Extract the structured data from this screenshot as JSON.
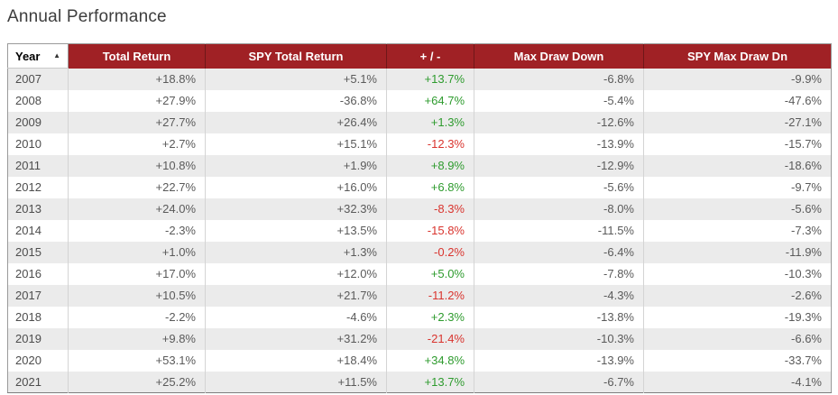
{
  "page": {
    "title": "Annual Performance"
  },
  "icons": {
    "sort_ascending": "▲"
  },
  "colors": {
    "header_bg": "#a02125",
    "header_text": "#ffffff",
    "positive": "#2e9b2e",
    "negative": "#d9342e",
    "row_alt_bg": "#ebebeb"
  },
  "table": {
    "columns": [
      {
        "key": "year",
        "label": "Year",
        "sorted": "ascending"
      },
      {
        "key": "total_return",
        "label": "Total Return"
      },
      {
        "key": "spy_total_return",
        "label": "SPY Total Return"
      },
      {
        "key": "plus_minus",
        "label": "+ / -"
      },
      {
        "key": "max_draw_down",
        "label": "Max Draw Down"
      },
      {
        "key": "spy_max_draw_dn",
        "label": "SPY Max Draw Dn"
      }
    ],
    "rows": [
      {
        "year": "2007",
        "total_return": "+18.8%",
        "spy_total_return": "+5.1%",
        "plus_minus": "+13.7%",
        "max_draw_down": "-6.8%",
        "spy_max_draw_dn": "-9.9%"
      },
      {
        "year": "2008",
        "total_return": "+27.9%",
        "spy_total_return": "-36.8%",
        "plus_minus": "+64.7%",
        "max_draw_down": "-5.4%",
        "spy_max_draw_dn": "-47.6%"
      },
      {
        "year": "2009",
        "total_return": "+27.7%",
        "spy_total_return": "+26.4%",
        "plus_minus": "+1.3%",
        "max_draw_down": "-12.6%",
        "spy_max_draw_dn": "-27.1%"
      },
      {
        "year": "2010",
        "total_return": "+2.7%",
        "spy_total_return": "+15.1%",
        "plus_minus": "-12.3%",
        "max_draw_down": "-13.9%",
        "spy_max_draw_dn": "-15.7%"
      },
      {
        "year": "2011",
        "total_return": "+10.8%",
        "spy_total_return": "+1.9%",
        "plus_minus": "+8.9%",
        "max_draw_down": "-12.9%",
        "spy_max_draw_dn": "-18.6%"
      },
      {
        "year": "2012",
        "total_return": "+22.7%",
        "spy_total_return": "+16.0%",
        "plus_minus": "+6.8%",
        "max_draw_down": "-5.6%",
        "spy_max_draw_dn": "-9.7%"
      },
      {
        "year": "2013",
        "total_return": "+24.0%",
        "spy_total_return": "+32.3%",
        "plus_minus": "-8.3%",
        "max_draw_down": "-8.0%",
        "spy_max_draw_dn": "-5.6%"
      },
      {
        "year": "2014",
        "total_return": "-2.3%",
        "spy_total_return": "+13.5%",
        "plus_minus": "-15.8%",
        "max_draw_down": "-11.5%",
        "spy_max_draw_dn": "-7.3%"
      },
      {
        "year": "2015",
        "total_return": "+1.0%",
        "spy_total_return": "+1.3%",
        "plus_minus": "-0.2%",
        "max_draw_down": "-6.4%",
        "spy_max_draw_dn": "-11.9%"
      },
      {
        "year": "2016",
        "total_return": "+17.0%",
        "spy_total_return": "+12.0%",
        "plus_minus": "+5.0%",
        "max_draw_down": "-7.8%",
        "spy_max_draw_dn": "-10.3%"
      },
      {
        "year": "2017",
        "total_return": "+10.5%",
        "spy_total_return": "+21.7%",
        "plus_minus": "-11.2%",
        "max_draw_down": "-4.3%",
        "spy_max_draw_dn": "-2.6%"
      },
      {
        "year": "2018",
        "total_return": "-2.2%",
        "spy_total_return": "-4.6%",
        "plus_minus": "+2.3%",
        "max_draw_down": "-13.8%",
        "spy_max_draw_dn": "-19.3%"
      },
      {
        "year": "2019",
        "total_return": "+9.8%",
        "spy_total_return": "+31.2%",
        "plus_minus": "-21.4%",
        "max_draw_down": "-10.3%",
        "spy_max_draw_dn": "-6.6%"
      },
      {
        "year": "2020",
        "total_return": "+53.1%",
        "spy_total_return": "+18.4%",
        "plus_minus": "+34.8%",
        "max_draw_down": "-13.9%",
        "spy_max_draw_dn": "-33.7%"
      },
      {
        "year": "2021",
        "total_return": "+25.2%",
        "spy_total_return": "+11.5%",
        "plus_minus": "+13.7%",
        "max_draw_down": "-6.7%",
        "spy_max_draw_dn": "-4.1%"
      }
    ]
  }
}
